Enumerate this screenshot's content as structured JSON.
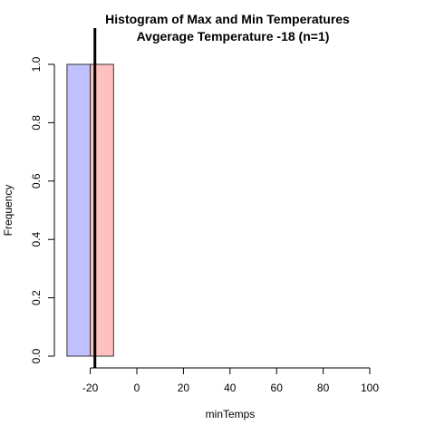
{
  "chart_data": {
    "type": "bar",
    "title": "Histogram of Max and Min Temperatures",
    "subtitle": "Avgerage Temperature -18 (n=1)",
    "xlabel": "minTemps",
    "ylabel": "Frequency",
    "xlim": [
      -30,
      100
    ],
    "ylim": [
      0,
      1
    ],
    "x_ticks": [
      -20,
      0,
      20,
      40,
      60,
      80,
      100
    ],
    "x_tick_labels": [
      "-20",
      "0",
      "20",
      "40",
      "60",
      "80",
      "100"
    ],
    "y_ticks": [
      0,
      0.2,
      0.4,
      0.6,
      0.8,
      1.0
    ],
    "y_tick_labels": [
      "0.0",
      "0.2",
      "0.4",
      "0.6",
      "0.8",
      "1.0"
    ],
    "grid": false,
    "legend": "none",
    "series": [
      {
        "bins": [
          {
            "x0": -30,
            "x1": -20,
            "count": 1
          }
        ],
        "color": "#c0c0ff"
      },
      {
        "bins": [
          {
            "x0": -20,
            "x1": -10,
            "count": 1
          }
        ],
        "color": "#ffc0c0"
      }
    ],
    "vline": {
      "x": -18,
      "color": "#000000"
    }
  }
}
